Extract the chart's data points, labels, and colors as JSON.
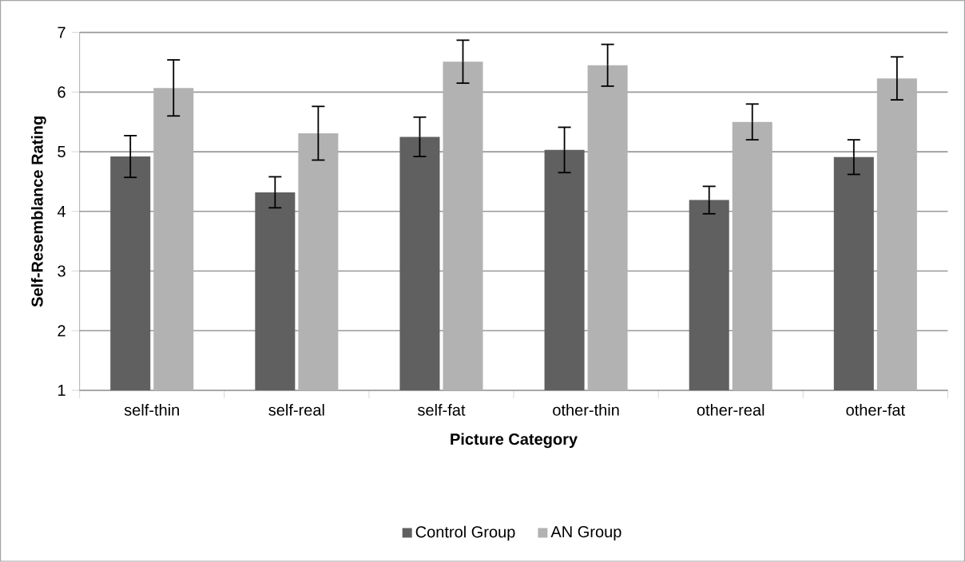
{
  "chart_data": {
    "type": "bar",
    "xlabel": "Picture Category",
    "ylabel": "Self-Resemblance Rating",
    "categories": [
      "self-thin",
      "self-real",
      "self-fat",
      "other-thin",
      "other-real",
      "other-fat"
    ],
    "series": [
      {
        "name": "Control Group",
        "color": "#606060",
        "values": [
          4.92,
          4.32,
          5.25,
          5.03,
          4.19,
          4.91
        ],
        "errors": [
          0.35,
          0.26,
          0.33,
          0.38,
          0.23,
          0.29
        ]
      },
      {
        "name": "AN Group",
        "color": "#b2b2b2",
        "values": [
          6.07,
          5.31,
          6.51,
          6.45,
          5.5,
          6.23
        ],
        "errors": [
          0.47,
          0.45,
          0.36,
          0.35,
          0.3,
          0.36
        ]
      }
    ],
    "ylim": [
      1,
      7
    ],
    "yticks": [
      1,
      2,
      3,
      4,
      5,
      6,
      7
    ],
    "grid": "y",
    "legend": "bottom"
  }
}
